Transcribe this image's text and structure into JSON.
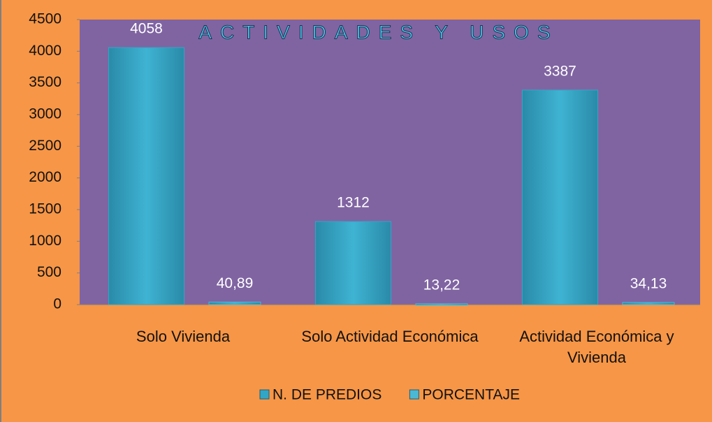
{
  "chart_data": {
    "type": "bar",
    "title": "ACTIVIDADES Y USOS",
    "categories": [
      "Solo Vivienda",
      "Solo Actividad Económica",
      "Actividad Económica y Vivienda"
    ],
    "series": [
      {
        "name": "N. DE PREDIOS",
        "color": "#31a6c6",
        "values": [
          4058,
          1312,
          3387
        ]
      },
      {
        "name": "PORCENTAJE",
        "color": "#4bb8d4",
        "values": [
          40.89,
          13.22,
          34.13
        ],
        "value_labels": [
          "40,89",
          "13,22",
          "34,13"
        ]
      }
    ],
    "ylim": [
      0,
      4500
    ],
    "yticks": [
      0,
      500,
      1000,
      1500,
      2000,
      2500,
      3000,
      3500,
      4000,
      4500
    ],
    "legend": "bottom"
  }
}
